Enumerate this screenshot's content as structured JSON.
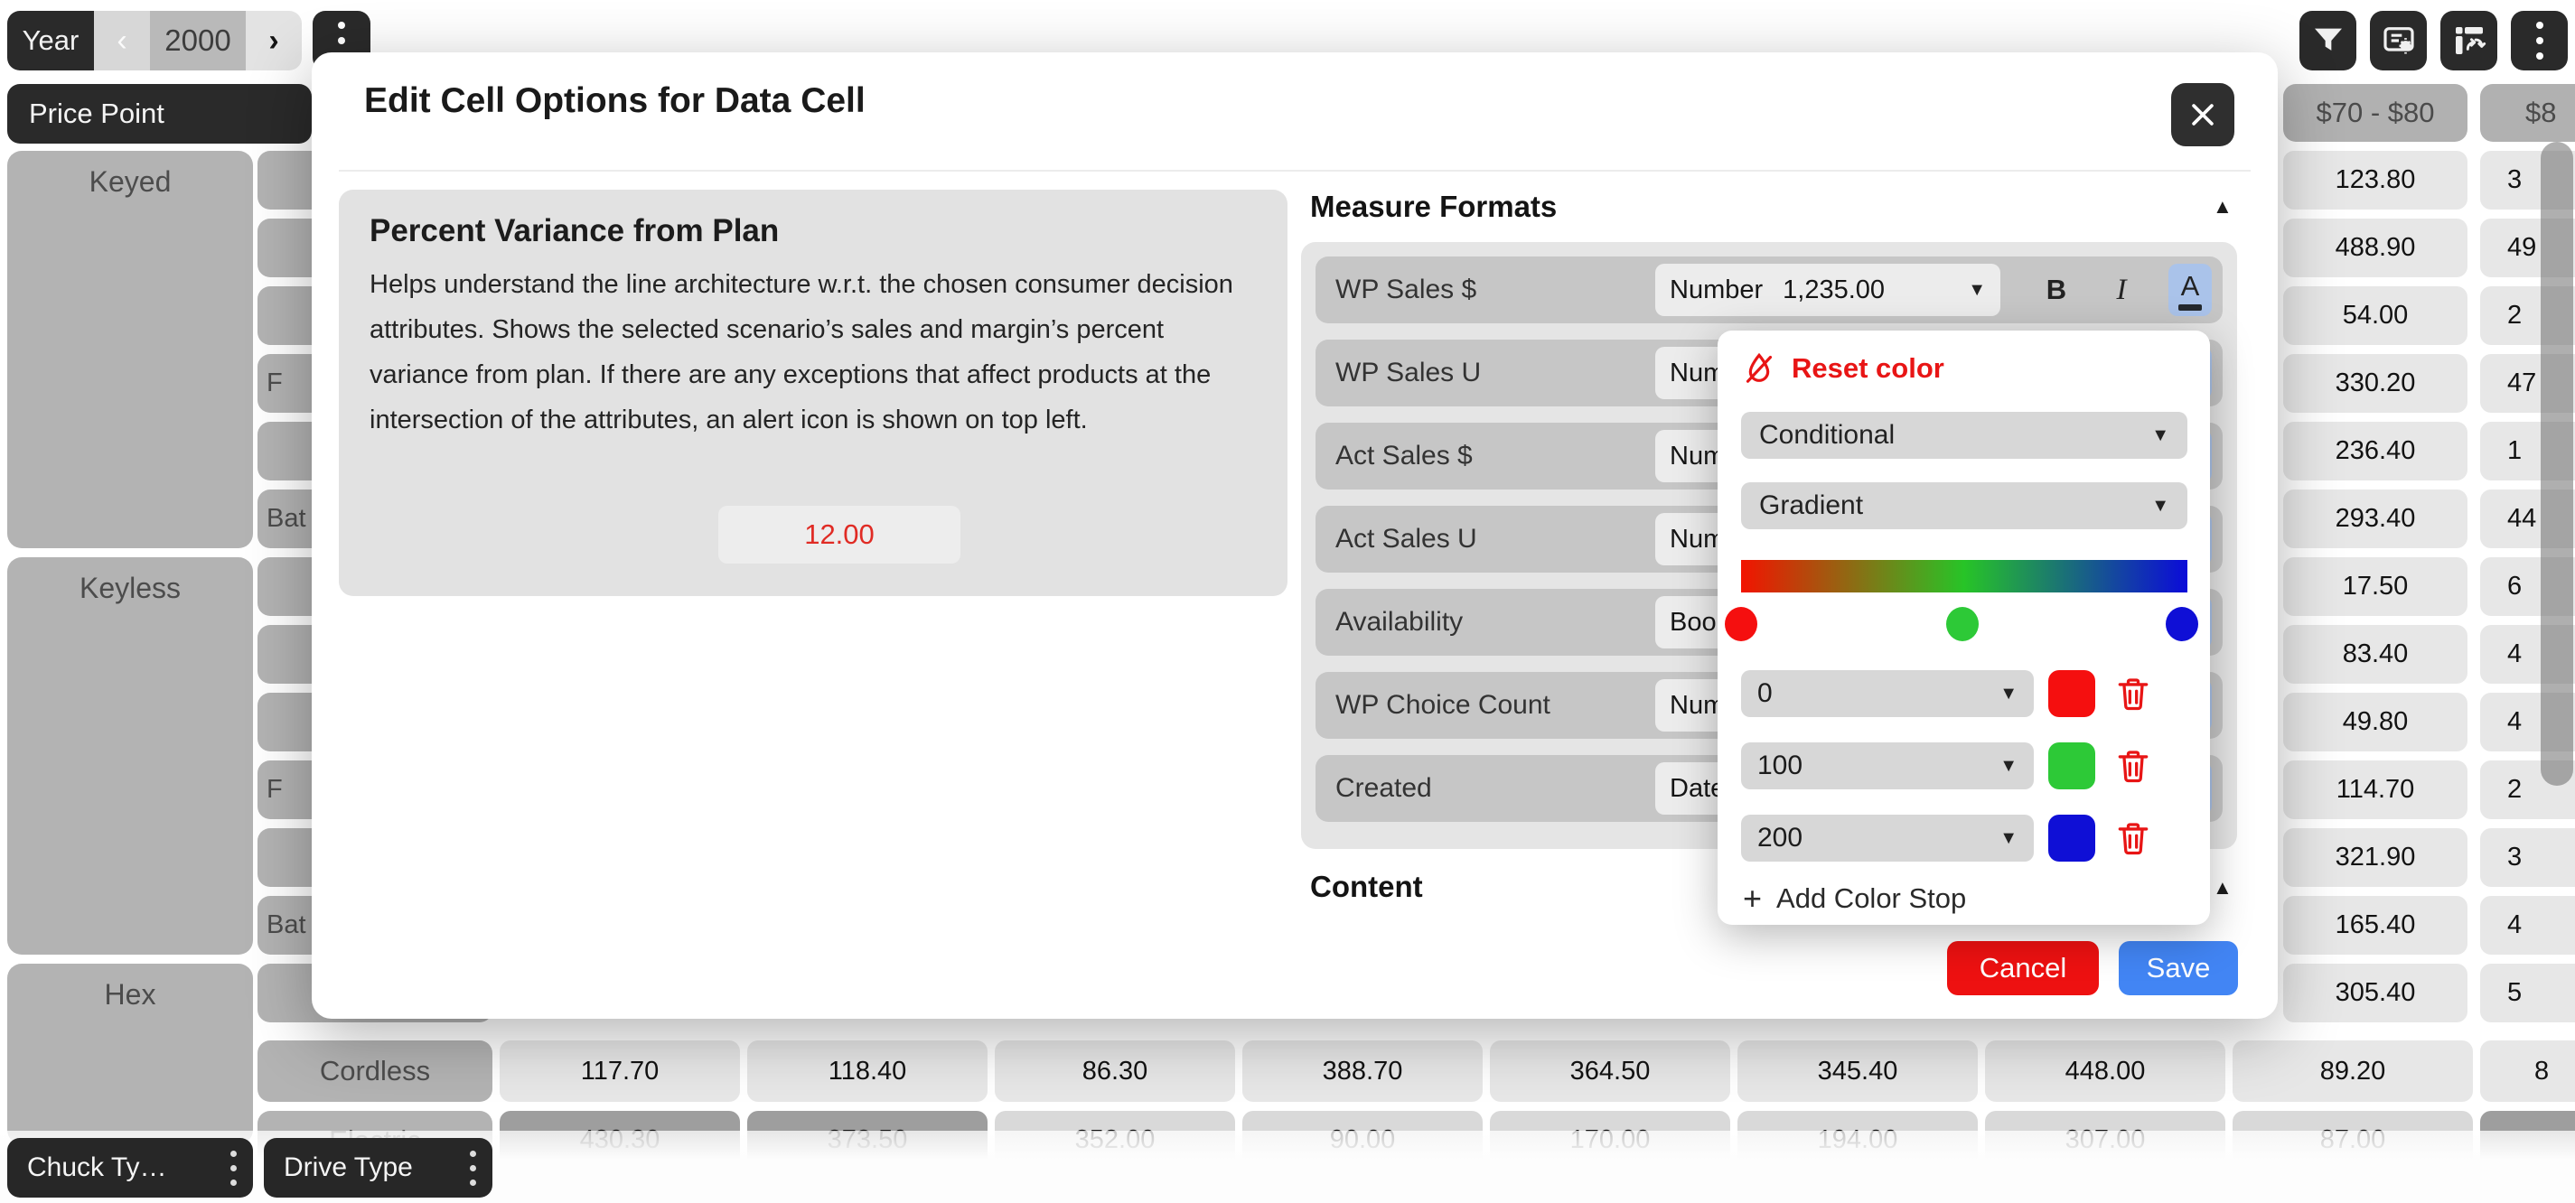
{
  "colors": {
    "accent_red": "#e81515",
    "accent_blue": "#4285f4",
    "stop_red": "#f50f0f",
    "stop_green": "#2dc937",
    "stop_blue": "#0f0fd6"
  },
  "toolbar": {
    "year_label": "Year",
    "year_value": "2000",
    "prev": "‹",
    "next": "›",
    "icons": [
      "filter-icon",
      "view-settings-icon",
      "pivot-icon",
      "more-icon"
    ]
  },
  "grid": {
    "row_dimension": "Price Point",
    "col_header_1": "$70 - $80",
    "col_header_2": "$8",
    "groups": [
      {
        "label": "Keyed"
      },
      {
        "label": "Keyless"
      },
      {
        "label": "Hex"
      }
    ],
    "subrow_fragments": [
      "",
      "",
      "",
      "F",
      "",
      "Bat",
      "",
      "",
      "",
      "F",
      "",
      "Bat",
      ""
    ],
    "col1_values": [
      "123.80",
      "488.90",
      "54.00",
      "330.20",
      "236.40",
      "293.40",
      "17.50",
      "83.40",
      "49.80",
      "114.70",
      "321.90",
      "165.40",
      "305.40"
    ],
    "col2_fragments": [
      "3",
      "49",
      "2",
      "47",
      "1",
      "44",
      "6",
      "4",
      "4",
      "2",
      "3",
      "4",
      "5"
    ],
    "cordless": {
      "label": "Cordless",
      "values": [
        "117.70",
        "118.40",
        "86.30",
        "388.70",
        "364.50",
        "345.40",
        "448.00",
        "89.20"
      ],
      "partial": "8"
    },
    "electric": {
      "label": "Electric",
      "values": [
        "430.30",
        "373.50",
        "352.00",
        "90.00",
        "170.00",
        "194.00",
        "307.00",
        "87.00"
      ]
    },
    "footer_chips": [
      {
        "label": "Chuck Ty…"
      },
      {
        "label": "Drive Type"
      }
    ]
  },
  "modal": {
    "title": "Edit Cell Options for Data Cell",
    "description": {
      "heading": "Percent Variance from Plan",
      "body": "Helps understand the line architecture w.r.t. the chosen consumer decision attributes. Shows the selected scenario’s sales and margin’s percent variance from plan. If there are any exceptions that affect products at the intersection of the attributes, an alert icon is shown on top left.",
      "sample": "12.00"
    },
    "measure_formats": {
      "heading": "Measure Formats",
      "rows": [
        {
          "label": "WP Sales $",
          "format": "Number",
          "sample": "1,235.00"
        },
        {
          "label": "WP Sales U",
          "format": "Number",
          "sample": ""
        },
        {
          "label": "Act Sales $",
          "format": "Number",
          "sample": ""
        },
        {
          "label": "Act Sales U",
          "format": "Number",
          "sample": ""
        },
        {
          "label": "Availability",
          "format": "Boolean",
          "sample": ""
        },
        {
          "label": "WP Choice Count",
          "format": "Number",
          "sample": ""
        },
        {
          "label": "Created",
          "format": "Date",
          "sample": ""
        }
      ]
    },
    "content_heading": "Content",
    "cancel_label": "Cancel",
    "save_label": "Save"
  },
  "color_picker": {
    "reset_label": "Reset color",
    "mode": "Conditional",
    "style": "Gradient",
    "stops": [
      {
        "value": "0",
        "color": "#f50f0f"
      },
      {
        "value": "100",
        "color": "#2dc937"
      },
      {
        "value": "200",
        "color": "#0f0fd6"
      }
    ],
    "add_stop_label": "Add Color Stop"
  }
}
